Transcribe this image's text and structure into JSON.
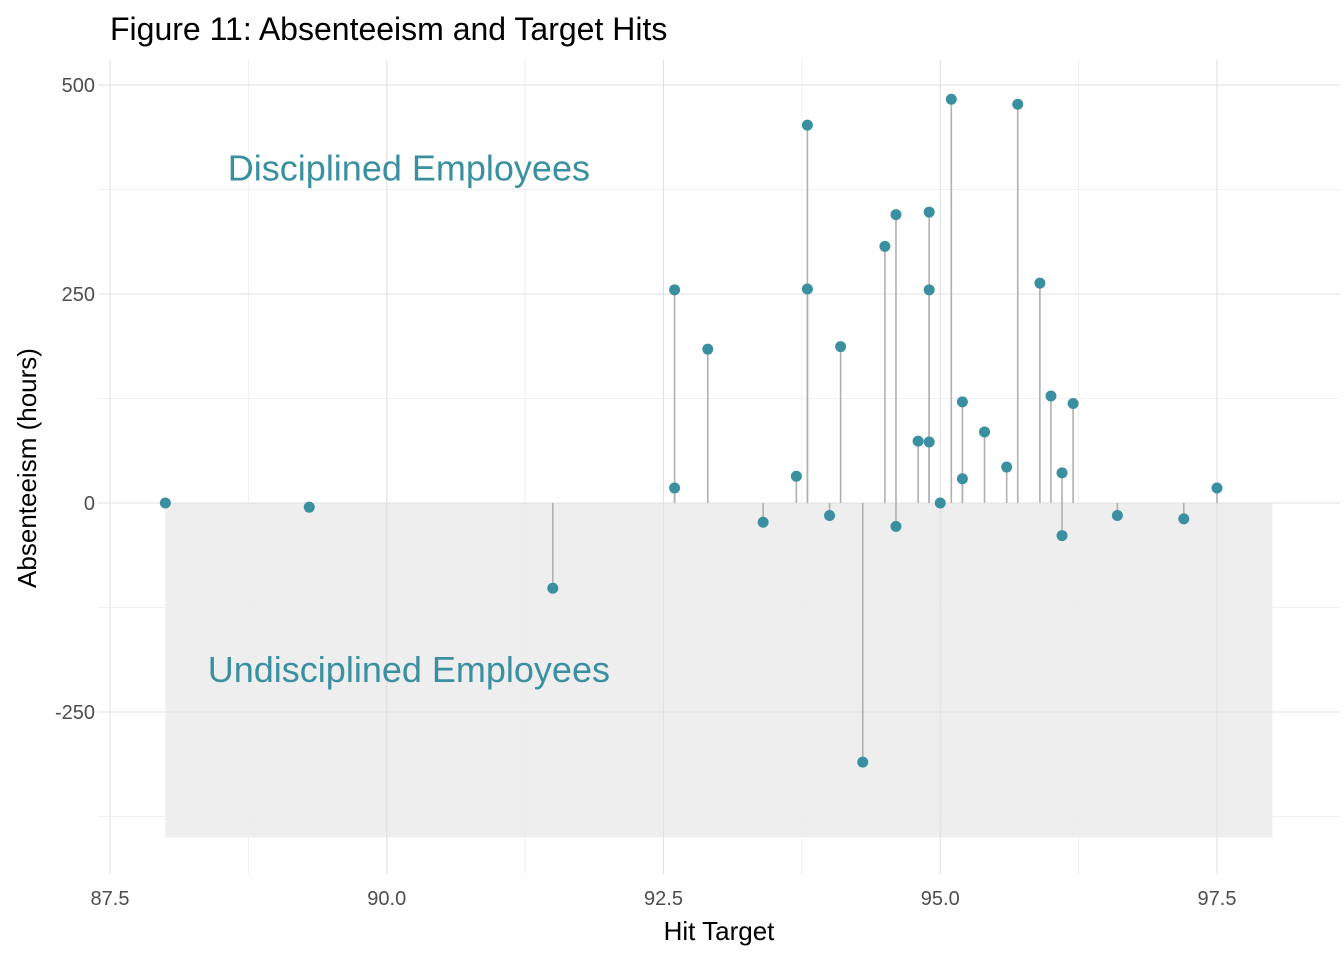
{
  "chart_data": {
    "type": "scatter",
    "title": "Figure 11: Absenteeism and Target Hits",
    "xlabel": "Hit Target",
    "ylabel": "Absenteeism (hours)",
    "xlim": [
      87.5,
      97.5
    ],
    "ylim": [
      -400,
      500
    ],
    "x_ticks": [
      87.5,
      90.0,
      92.5,
      95.0,
      97.5
    ],
    "x_tick_labels": [
      "87.5",
      "90.0",
      "92.5",
      "95.0",
      "97.5"
    ],
    "y_ticks": [
      -250,
      0,
      250,
      500
    ],
    "y_tick_labels": [
      "-250",
      "0",
      "250",
      "500"
    ],
    "grid": true,
    "shaded_region": {
      "x": [
        88.0,
        98.0
      ],
      "y": [
        -400,
        0
      ],
      "color": "#eeeeee"
    },
    "annotations": [
      {
        "text": "Disciplined Employees",
        "x": 90.2,
        "y": 400
      },
      {
        "text": "Undisciplined Employees",
        "x": 90.2,
        "y": -200
      }
    ],
    "point_color": "#3a8fa0",
    "stem_color": "#b0b0b0",
    "points": [
      {
        "x": 88.0,
        "y": 0
      },
      {
        "x": 89.3,
        "y": -5
      },
      {
        "x": 91.5,
        "y": -102
      },
      {
        "x": 92.6,
        "y": 255
      },
      {
        "x": 92.6,
        "y": 18
      },
      {
        "x": 92.9,
        "y": 184
      },
      {
        "x": 93.4,
        "y": -23
      },
      {
        "x": 93.7,
        "y": 32
      },
      {
        "x": 93.8,
        "y": 452
      },
      {
        "x": 93.8,
        "y": 256
      },
      {
        "x": 94.0,
        "y": -15
      },
      {
        "x": 94.1,
        "y": 187
      },
      {
        "x": 94.3,
        "y": -310
      },
      {
        "x": 94.5,
        "y": 307
      },
      {
        "x": 94.6,
        "y": 345
      },
      {
        "x": 94.6,
        "y": -28
      },
      {
        "x": 94.8,
        "y": 74
      },
      {
        "x": 94.9,
        "y": 73
      },
      {
        "x": 94.9,
        "y": 348
      },
      {
        "x": 94.9,
        "y": 255
      },
      {
        "x": 95.0,
        "y": 0
      },
      {
        "x": 95.1,
        "y": 483
      },
      {
        "x": 95.2,
        "y": 29
      },
      {
        "x": 95.2,
        "y": 121
      },
      {
        "x": 95.4,
        "y": 85
      },
      {
        "x": 95.6,
        "y": 43
      },
      {
        "x": 95.7,
        "y": 477
      },
      {
        "x": 95.9,
        "y": 263
      },
      {
        "x": 96.0,
        "y": 128
      },
      {
        "x": 96.1,
        "y": 36
      },
      {
        "x": 96.1,
        "y": -39
      },
      {
        "x": 96.2,
        "y": 119
      },
      {
        "x": 96.6,
        "y": -15
      },
      {
        "x": 97.2,
        "y": -19
      },
      {
        "x": 97.5,
        "y": 18
      }
    ]
  }
}
